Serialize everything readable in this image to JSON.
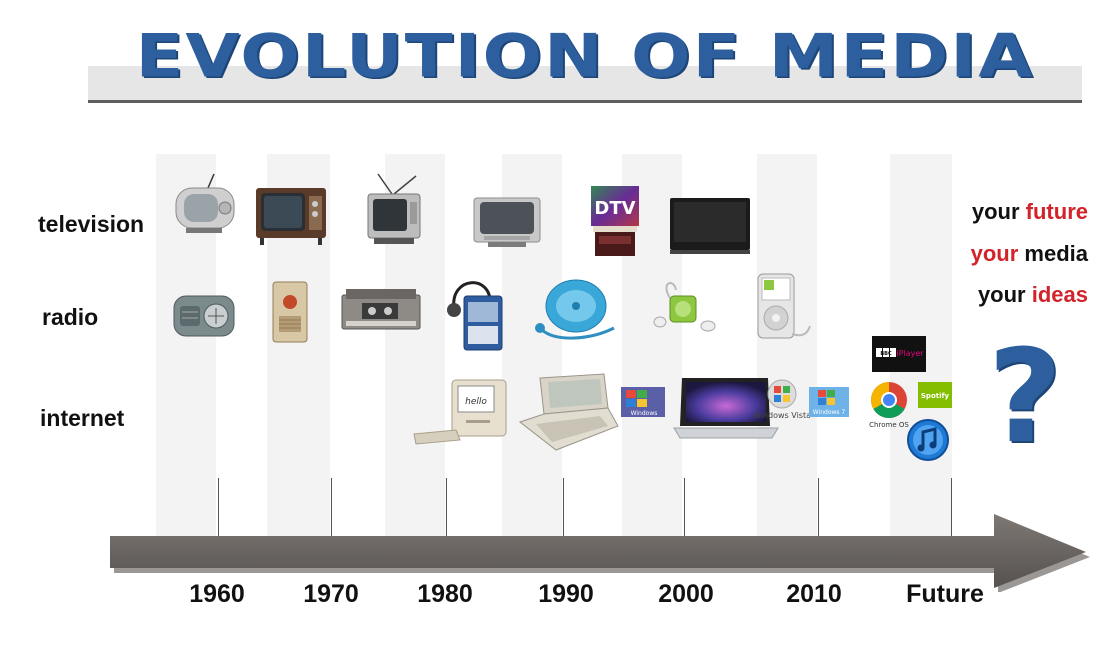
{
  "title": "EVOLUTION OF MEDIA",
  "rows": {
    "television": "television",
    "radio": "radio",
    "internet": "internet"
  },
  "timeline": {
    "labels": [
      "1960",
      "1970",
      "1980",
      "1990",
      "2000",
      "2010",
      "Future"
    ]
  },
  "future_text": {
    "line1": {
      "a": "your ",
      "b": "future"
    },
    "line2": {
      "a": "your",
      "b": " media"
    },
    "line3": {
      "a": "your ",
      "b": "ideas"
    }
  },
  "logos": {
    "dtv": "DTV",
    "windows_vista": "Windows Vista",
    "windows_7": "Windows 7",
    "chrome_os": "Chrome OS",
    "spotify": "Spotify",
    "bbc": "BBC",
    "iplayer": "iPlayer",
    "hello": "hello",
    "windows": "Windows"
  },
  "colors": {
    "title_blue": "#2d5f9e",
    "accent_red": "#d2232a",
    "arrow_gray": "#6b6663"
  }
}
